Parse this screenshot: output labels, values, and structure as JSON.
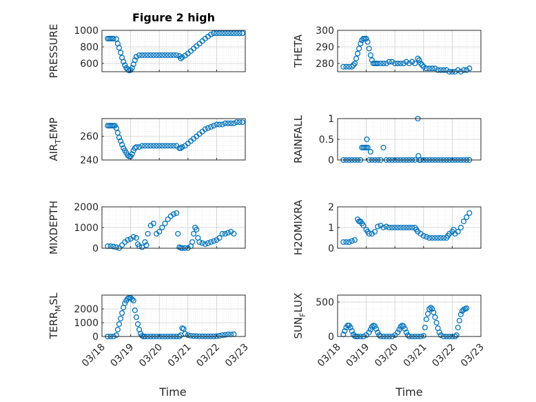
{
  "figure": {
    "title": "Figure 2 high",
    "xlabel": "Time",
    "x_ticks": [
      "03/18",
      "03/19",
      "03/20",
      "03/21",
      "03/22",
      "03/23"
    ],
    "marker_color": "#0072BD",
    "grid_color": "#DCDCDC"
  },
  "chart_data": [
    {
      "type": "scatter",
      "id": "pressure",
      "title": "Figure 2 high",
      "xlabel": "",
      "ylabel": "PRESSURE",
      "ylabel_sub": "",
      "ylabel_rest": "",
      "xlim": [
        0,
        5
      ],
      "ylim": [
        500,
        1000
      ],
      "yticks": [
        600,
        800,
        1000
      ],
      "ytick_labels": [
        "600",
        "800",
        "1000"
      ],
      "x_tick_labels_shown": false,
      "grid": true,
      "x": [
        0.2,
        0.25,
        0.3,
        0.35,
        0.4,
        0.5,
        0.55,
        0.6,
        0.65,
        0.7,
        0.75,
        0.8,
        0.85,
        0.9,
        0.95,
        1.0,
        1.05,
        1.1,
        1.15,
        1.2,
        1.3,
        1.4,
        1.5,
        1.6,
        1.7,
        1.8,
        1.9,
        2.0,
        2.1,
        2.2,
        2.3,
        2.4,
        2.5,
        2.6,
        2.7,
        2.75,
        2.8,
        2.9,
        3.0,
        3.1,
        3.2,
        3.3,
        3.4,
        3.5,
        3.6,
        3.7,
        3.8,
        3.9,
        4.0,
        4.1,
        4.2,
        4.3,
        4.4,
        4.5,
        4.6,
        4.7,
        4.8,
        4.9
      ],
      "y": [
        900,
        900,
        900,
        900,
        900,
        895,
        840,
        790,
        730,
        670,
        620,
        580,
        545,
        525,
        515,
        520,
        545,
        590,
        640,
        680,
        700,
        700,
        700,
        700,
        700,
        700,
        700,
        700,
        700,
        700,
        700,
        700,
        700,
        700,
        690,
        660,
        675,
        695,
        720,
        750,
        780,
        810,
        840,
        870,
        900,
        925,
        950,
        965,
        965,
        965,
        965,
        965,
        965,
        965,
        965,
        965,
        965,
        965
      ]
    },
    {
      "type": "scatter",
      "id": "theta",
      "title": "",
      "xlabel": "",
      "ylabel": "THETA",
      "ylabel_sub": "",
      "ylabel_rest": "",
      "xlim": [
        0,
        5
      ],
      "ylim": [
        275,
        300
      ],
      "yticks": [
        280,
        290,
        300
      ],
      "ytick_labels": [
        "280",
        "290",
        "300"
      ],
      "x_tick_labels_shown": false,
      "grid": true,
      "x": [
        0.2,
        0.3,
        0.4,
        0.5,
        0.55,
        0.6,
        0.65,
        0.7,
        0.75,
        0.8,
        0.85,
        0.9,
        0.95,
        1.0,
        1.05,
        1.1,
        1.15,
        1.2,
        1.25,
        1.3,
        1.35,
        1.4,
        1.5,
        1.6,
        1.7,
        1.8,
        1.9,
        2.0,
        2.1,
        2.2,
        2.3,
        2.4,
        2.5,
        2.6,
        2.7,
        2.8,
        2.85,
        2.9,
        2.95,
        3.0,
        3.1,
        3.2,
        3.3,
        3.4,
        3.5,
        3.6,
        3.7,
        3.8,
        3.9,
        4.0,
        4.1,
        4.2,
        4.3,
        4.4,
        4.5,
        4.6
      ],
      "y": [
        278,
        278,
        278,
        278,
        279,
        280,
        283,
        286,
        289,
        292,
        294,
        295,
        295,
        295,
        293,
        289,
        285,
        282,
        280,
        280,
        280,
        280,
        280,
        280,
        280,
        281,
        281,
        280,
        280,
        280,
        280,
        281,
        280,
        281,
        280,
        283,
        282,
        280,
        279,
        278,
        277,
        277,
        277,
        277,
        276,
        276,
        276,
        276,
        275,
        275,
        275,
        276,
        275,
        276,
        276,
        277
      ]
    },
    {
      "type": "scatter",
      "id": "air_temp",
      "title": "",
      "xlabel": "",
      "ylabel": "AIR",
      "ylabel_sub": "T",
      "ylabel_rest": "EMP",
      "xlim": [
        0,
        5
      ],
      "ylim": [
        240,
        275
      ],
      "yticks": [
        240,
        260
      ],
      "ytick_labels": [
        "240",
        "260"
      ],
      "x_tick_labels_shown": false,
      "grid": true,
      "x": [
        0.2,
        0.25,
        0.3,
        0.35,
        0.4,
        0.45,
        0.5,
        0.55,
        0.6,
        0.65,
        0.7,
        0.75,
        0.8,
        0.85,
        0.9,
        0.95,
        1.0,
        1.05,
        1.1,
        1.15,
        1.2,
        1.3,
        1.4,
        1.5,
        1.6,
        1.7,
        1.8,
        1.9,
        2.0,
        2.1,
        2.2,
        2.3,
        2.4,
        2.5,
        2.6,
        2.7,
        2.75,
        2.8,
        2.9,
        3.0,
        3.1,
        3.2,
        3.3,
        3.4,
        3.5,
        3.6,
        3.7,
        3.8,
        3.9,
        4.0,
        4.1,
        4.2,
        4.3,
        4.4,
        4.5,
        4.6,
        4.7,
        4.8,
        4.9
      ],
      "y": [
        269,
        269,
        269,
        269,
        269,
        269,
        267,
        263,
        259,
        256,
        253,
        250,
        248,
        246,
        244,
        243,
        243,
        245,
        248,
        250,
        251,
        251,
        252,
        252,
        252,
        252,
        252,
        252,
        252,
        252,
        252,
        252,
        252,
        252,
        252,
        250,
        250,
        251,
        252,
        254,
        256,
        258,
        260,
        262,
        264,
        266,
        267,
        268,
        269,
        270,
        270,
        270,
        271,
        271,
        271,
        271,
        272,
        272,
        272
      ]
    },
    {
      "type": "scatter",
      "id": "rainfall",
      "title": "",
      "xlabel": "",
      "ylabel": "RAINFALL",
      "ylabel_sub": "",
      "ylabel_rest": "",
      "xlim": [
        0,
        5
      ],
      "ylim": [
        0,
        1
      ],
      "yticks": [
        0,
        0.5,
        1
      ],
      "ytick_labels": [
        "0",
        "0.5",
        "1"
      ],
      "x_tick_labels_shown": false,
      "grid": true,
      "x": [
        0.2,
        0.3,
        0.4,
        0.5,
        0.6,
        0.7,
        0.8,
        0.85,
        0.9,
        0.95,
        1.0,
        1.02,
        1.05,
        1.1,
        1.15,
        1.2,
        1.3,
        1.4,
        1.5,
        1.6,
        1.7,
        1.8,
        1.9,
        2.0,
        2.1,
        2.2,
        2.3,
        2.4,
        2.5,
        2.6,
        2.7,
        2.8,
        2.82,
        2.85,
        2.9,
        3.0,
        3.1,
        3.2,
        3.3,
        3.4,
        3.5,
        3.6,
        3.7,
        3.8,
        3.9,
        4.0,
        4.1,
        4.2,
        4.3,
        4.4,
        4.5,
        4.6
      ],
      "y": [
        0,
        0,
        0,
        0,
        0,
        0,
        0,
        0.3,
        0.3,
        0.3,
        0.3,
        0.5,
        0.3,
        0,
        0.2,
        0,
        0,
        0,
        0,
        0.3,
        0,
        0,
        0,
        0,
        0,
        0,
        0,
        0,
        0,
        0,
        0,
        1,
        0.1,
        0,
        0,
        0,
        0,
        0,
        0,
        0,
        0,
        0,
        0,
        0,
        0,
        0,
        0,
        0,
        0,
        0,
        0,
        0
      ]
    },
    {
      "type": "scatter",
      "id": "mixdepth",
      "title": "",
      "xlabel": "",
      "ylabel": "MIXDEPTH",
      "ylabel_sub": "",
      "ylabel_rest": "",
      "xlim": [
        0,
        5
      ],
      "ylim": [
        0,
        2000
      ],
      "yticks": [
        0,
        1000,
        2000
      ],
      "ytick_labels": [
        "0",
        "1000",
        "2000"
      ],
      "x_tick_labels_shown": false,
      "grid": true,
      "x": [
        0.2,
        0.3,
        0.4,
        0.5,
        0.6,
        0.7,
        0.8,
        0.9,
        1.0,
        1.1,
        1.2,
        1.25,
        1.3,
        1.4,
        1.5,
        1.55,
        1.6,
        1.7,
        1.8,
        1.9,
        2.0,
        2.1,
        2.2,
        2.3,
        2.4,
        2.5,
        2.6,
        2.65,
        2.7,
        2.75,
        2.8,
        2.9,
        3.0,
        3.1,
        3.15,
        3.2,
        3.25,
        3.3,
        3.35,
        3.4,
        3.5,
        3.6,
        3.7,
        3.8,
        3.9,
        4.0,
        4.1,
        4.2,
        4.3,
        4.4,
        4.5,
        4.6
      ],
      "y": [
        100,
        100,
        80,
        50,
        10,
        150,
        300,
        400,
        450,
        550,
        500,
        200,
        100,
        50,
        300,
        150,
        700,
        1100,
        1200,
        700,
        800,
        1000,
        1200,
        1400,
        1550,
        1650,
        1700,
        700,
        50,
        20,
        10,
        10,
        10,
        100,
        300,
        700,
        1000,
        900,
        500,
        300,
        250,
        200,
        250,
        300,
        350,
        400,
        500,
        700,
        700,
        750,
        800,
        700
      ]
    },
    {
      "type": "scatter",
      "id": "h2omixra",
      "title": "",
      "xlabel": "",
      "ylabel": "H2OMIXRA",
      "ylabel_sub": "",
      "ylabel_rest": "",
      "xlim": [
        0,
        5
      ],
      "ylim": [
        0,
        2
      ],
      "yticks": [
        0,
        1,
        2
      ],
      "ytick_labels": [
        "0",
        "1",
        "2"
      ],
      "x_tick_labels_shown": false,
      "grid": true,
      "x": [
        0.2,
        0.3,
        0.4,
        0.5,
        0.6,
        0.7,
        0.75,
        0.8,
        0.85,
        0.9,
        1.0,
        1.05,
        1.1,
        1.2,
        1.3,
        1.4,
        1.5,
        1.6,
        1.7,
        1.8,
        1.9,
        2.0,
        2.1,
        2.2,
        2.3,
        2.4,
        2.5,
        2.6,
        2.7,
        2.75,
        2.8,
        2.9,
        3.0,
        3.1,
        3.2,
        3.3,
        3.4,
        3.5,
        3.6,
        3.7,
        3.8,
        3.85,
        3.9,
        4.0,
        4.05,
        4.1,
        4.2,
        4.3,
        4.4,
        4.5,
        4.6
      ],
      "y": [
        0.3,
        0.3,
        0.3,
        0.35,
        0.4,
        1.4,
        1.3,
        1.3,
        1.2,
        1.1,
        0.9,
        0.8,
        0.7,
        0.7,
        0.8,
        1.05,
        1.1,
        1.0,
        1.05,
        1.0,
        1.0,
        1.0,
        1.0,
        1.0,
        1.0,
        1.0,
        1.0,
        1.0,
        1.0,
        0.9,
        0.8,
        0.7,
        0.6,
        0.55,
        0.5,
        0.5,
        0.5,
        0.5,
        0.5,
        0.5,
        0.5,
        0.6,
        0.7,
        0.8,
        0.9,
        0.7,
        0.8,
        1.0,
        1.3,
        1.5,
        1.7
      ]
    },
    {
      "type": "scatter",
      "id": "terr_msl",
      "title": "",
      "xlabel": "Time",
      "ylabel": "TERR",
      "ylabel_sub": "M",
      "ylabel_rest": "SL",
      "xlim": [
        0,
        5
      ],
      "ylim": [
        0,
        3000
      ],
      "yticks": [
        0,
        1000,
        2000
      ],
      "ytick_labels": [
        "0",
        "1000",
        "2000"
      ],
      "x_tick_labels_shown": true,
      "grid": true,
      "x": [
        0.2,
        0.3,
        0.4,
        0.5,
        0.55,
        0.6,
        0.65,
        0.7,
        0.75,
        0.8,
        0.85,
        0.9,
        0.95,
        1.0,
        1.05,
        1.1,
        1.15,
        1.2,
        1.25,
        1.3,
        1.35,
        1.4,
        1.45,
        1.5,
        1.6,
        1.7,
        1.8,
        1.9,
        2.0,
        2.1,
        2.2,
        2.3,
        2.4,
        2.5,
        2.6,
        2.7,
        2.75,
        2.8,
        2.85,
        2.9,
        3.0,
        3.1,
        3.2,
        3.3,
        3.4,
        3.5,
        3.6,
        3.7,
        3.8,
        3.9,
        4.0,
        4.1,
        4.2,
        4.3,
        4.4,
        4.5,
        4.6
      ],
      "y": [
        0,
        0,
        0,
        100,
        500,
        900,
        1300,
        1700,
        2100,
        2400,
        2600,
        2750,
        2800,
        2800,
        2700,
        2600,
        1900,
        1400,
        900,
        500,
        200,
        50,
        0,
        0,
        0,
        0,
        0,
        0,
        0,
        0,
        0,
        0,
        0,
        0,
        0,
        0,
        100,
        600,
        550,
        200,
        100,
        50,
        30,
        20,
        10,
        10,
        10,
        10,
        10,
        10,
        20,
        50,
        100,
        120,
        150,
        150,
        160
      ]
    },
    {
      "type": "scatter",
      "id": "sun_flux",
      "title": "",
      "xlabel": "Time",
      "ylabel": "SUN",
      "ylabel_sub": "F",
      "ylabel_rest": "LUX",
      "xlim": [
        0,
        5
      ],
      "ylim": [
        0,
        600
      ],
      "yticks": [
        0,
        500
      ],
      "ytick_labels": [
        "0",
        "500"
      ],
      "x_tick_labels_shown": true,
      "grid": true,
      "x": [
        0.2,
        0.25,
        0.3,
        0.35,
        0.4,
        0.45,
        0.5,
        0.55,
        0.6,
        0.65,
        0.7,
        0.8,
        0.9,
        1.0,
        1.1,
        1.15,
        1.2,
        1.25,
        1.3,
        1.35,
        1.4,
        1.45,
        1.5,
        1.6,
        1.7,
        1.8,
        1.9,
        2.0,
        2.1,
        2.15,
        2.2,
        2.25,
        2.3,
        2.35,
        2.4,
        2.45,
        2.5,
        2.6,
        2.7,
        2.8,
        2.9,
        3.0,
        3.05,
        3.1,
        3.15,
        3.2,
        3.25,
        3.3,
        3.35,
        3.4,
        3.45,
        3.5,
        3.55,
        3.6,
        3.7,
        3.8,
        3.9,
        4.0,
        4.1,
        4.15,
        4.2,
        4.25,
        4.3,
        4.35,
        4.4,
        4.45,
        4.5
      ],
      "y": [
        30,
        80,
        130,
        160,
        160,
        130,
        80,
        30,
        5,
        0,
        0,
        0,
        0,
        20,
        60,
        100,
        140,
        160,
        150,
        110,
        60,
        20,
        0,
        0,
        0,
        0,
        0,
        20,
        60,
        100,
        140,
        160,
        150,
        110,
        60,
        20,
        0,
        0,
        0,
        0,
        0,
        10,
        130,
        250,
        330,
        400,
        420,
        400,
        350,
        280,
        200,
        120,
        60,
        20,
        0,
        0,
        0,
        0,
        0,
        20,
        130,
        230,
        320,
        370,
        390,
        400,
        410
      ]
    }
  ]
}
